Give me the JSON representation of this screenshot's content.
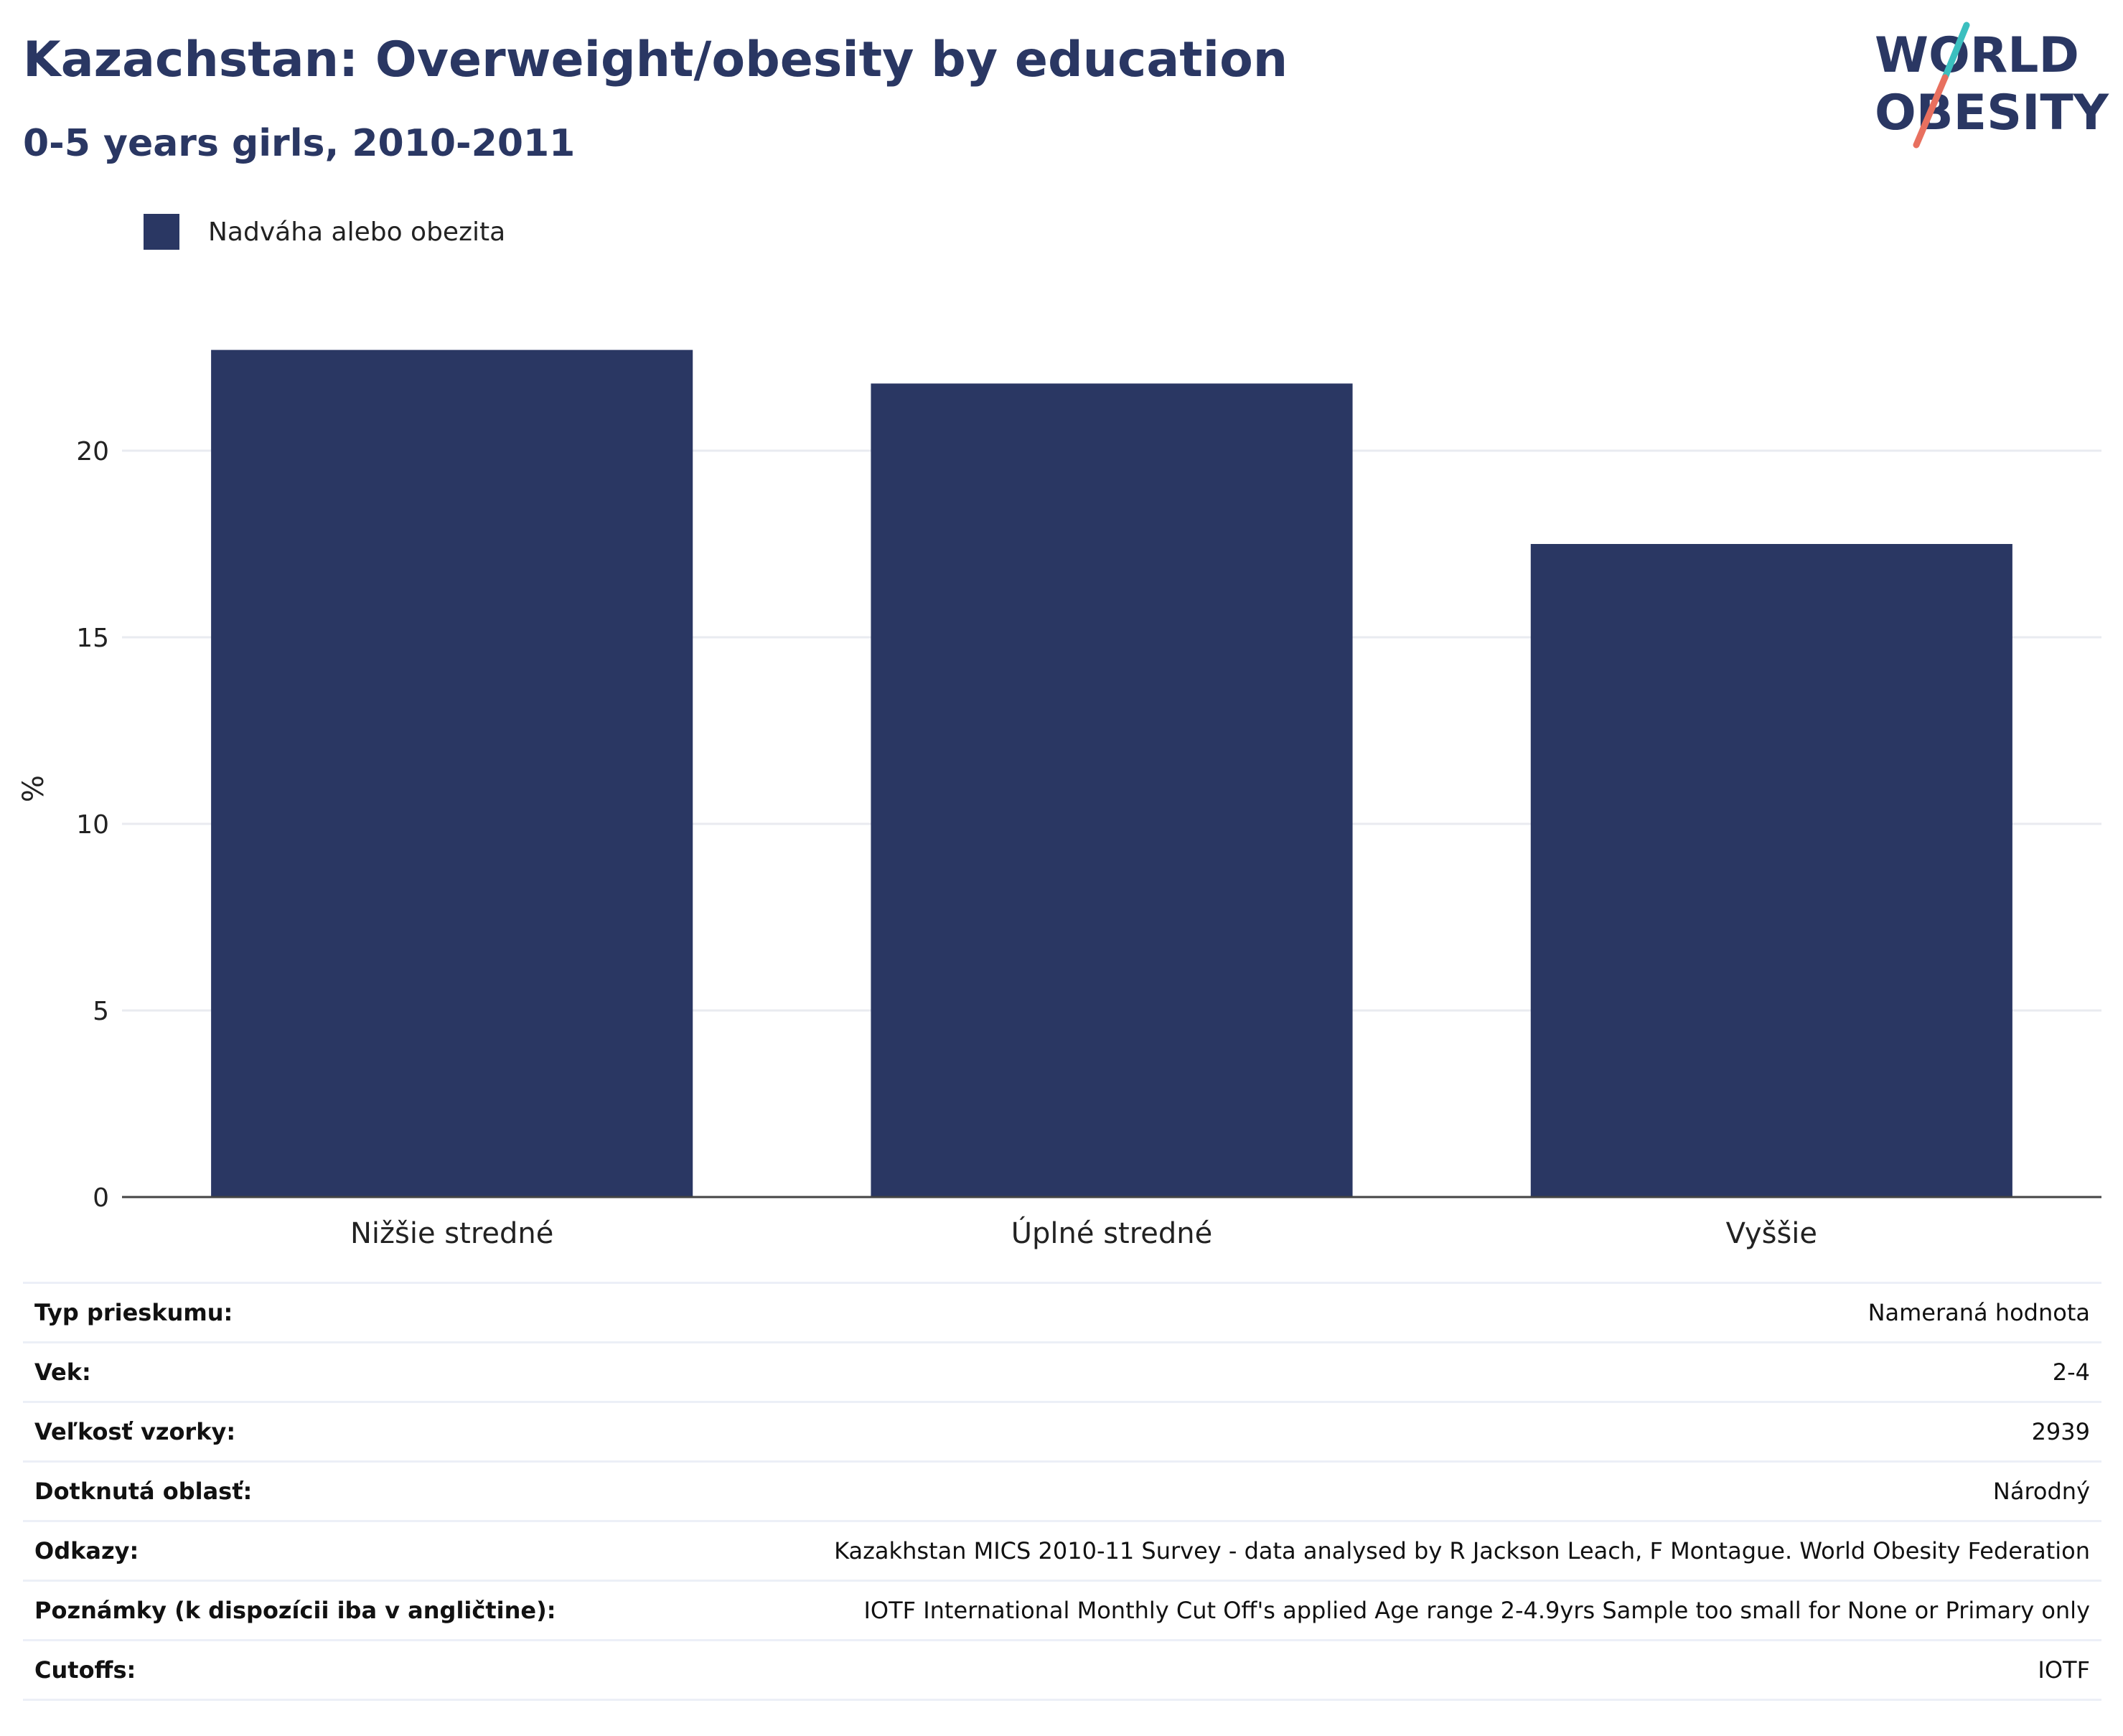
{
  "header": {
    "title": "Kazachstan: Overweight/obesity by education",
    "subtitle": "0-5 years girls, 2010-2011"
  },
  "logo": {
    "line1": "WORLD",
    "line2": "OBESITY",
    "slash_top": "#3bbfbf",
    "slash_bottom": "#e8705f"
  },
  "chart_data": {
    "type": "bar",
    "categories": [
      "Nižšie stredné",
      "Úplné stredné",
      "Vyššie"
    ],
    "series": [
      {
        "name": "Nadváha alebo obezita",
        "values": [
          22.7,
          21.8,
          17.5
        ],
        "color": "#2a3763"
      }
    ],
    "ylabel": "%",
    "yticks": [
      0,
      5,
      10,
      15,
      20
    ],
    "ylim": [
      0,
      24
    ],
    "grid": true,
    "legend_position": "top-left"
  },
  "info": [
    {
      "key": "Typ prieskumu:",
      "value": "Nameraná hodnota"
    },
    {
      "key": "Vek:",
      "value": "2-4"
    },
    {
      "key": "Veľkosť vzorky:",
      "value": "2939"
    },
    {
      "key": "Dotknutá oblasť:",
      "value": "Národný"
    },
    {
      "key": "Odkazy:",
      "value": "Kazakhstan MICS 2010-11 Survey - data analysed by R Jackson Leach, F Montague. World Obesity Federation"
    },
    {
      "key": "Poznámky (k dispozícii iba v angličtine):",
      "value": "IOTF International Monthly Cut Off's applied Age range 2-4.9yrs Sample too small for None or Primary only"
    },
    {
      "key": "Cutoffs:",
      "value": "IOTF"
    }
  ]
}
